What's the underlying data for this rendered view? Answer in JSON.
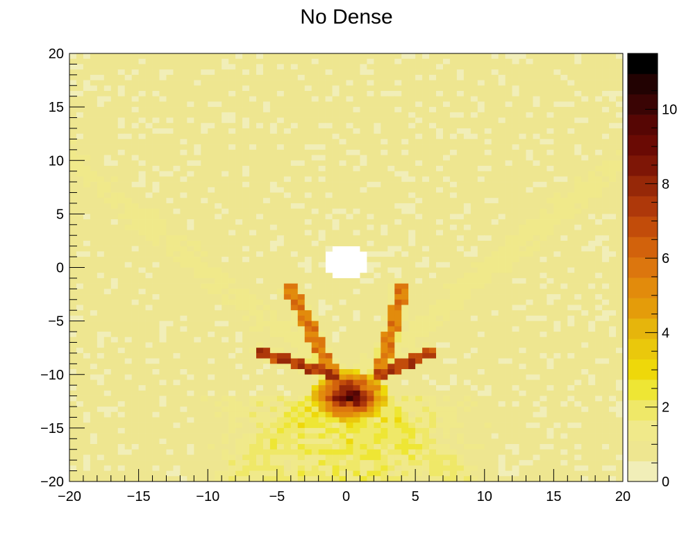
{
  "chart_data": {
    "type": "heatmap",
    "title": "No Dense",
    "xlabel": "",
    "ylabel": "",
    "xlim": [
      -20,
      20
    ],
    "ylim": [
      -20,
      20
    ],
    "bins": {
      "x": 80,
      "y": 80
    },
    "x_ticks": [
      "−20",
      "−15",
      "−10",
      "−5",
      "0",
      "5",
      "10",
      "15",
      "20"
    ],
    "y_ticks": [
      "20",
      "15",
      "10",
      "5",
      "0",
      "−5",
      "−10",
      "−15",
      "−20"
    ],
    "colorbar": {
      "range": [
        0,
        11.5
      ],
      "levels": 20,
      "ticks": [
        "0",
        "2",
        "4",
        "6",
        "8",
        "10"
      ],
      "palette": [
        "#f1eeb8",
        "#eee690",
        "#f0e98a",
        "#efe868",
        "#eee634",
        "#eed80a",
        "#eac80c",
        "#e6b50c",
        "#e49c0a",
        "#e28b0c",
        "#dc760e",
        "#d2620c",
        "#c24c0a",
        "#ae380a",
        "#962808",
        "#7e1606",
        "#6a0a04",
        "#560604",
        "#3a0404",
        "#220202",
        "#000000"
      ]
    },
    "features": {
      "background_level": 0.5,
      "hot_core": {
        "x_range": [
          -2,
          2.5
        ],
        "y_range": [
          -14,
          -10
        ],
        "max": 11.5
      },
      "empty_region": {
        "x": 0,
        "y": 0.5,
        "radius": 1.7
      },
      "arms": [
        {
          "from": [
            -1,
            -10
          ],
          "to": [
            -6,
            -8
          ],
          "value": 8.5
        },
        {
          "from": [
            -1,
            -10
          ],
          "to": [
            -4,
            -2
          ],
          "value": 6.5
        },
        {
          "from": [
            2.5,
            -10
          ],
          "to": [
            6,
            -8
          ],
          "value": 8.5
        },
        {
          "from": [
            2.5,
            -10
          ],
          "to": [
            4,
            -2
          ],
          "value": 6.5
        }
      ]
    }
  }
}
